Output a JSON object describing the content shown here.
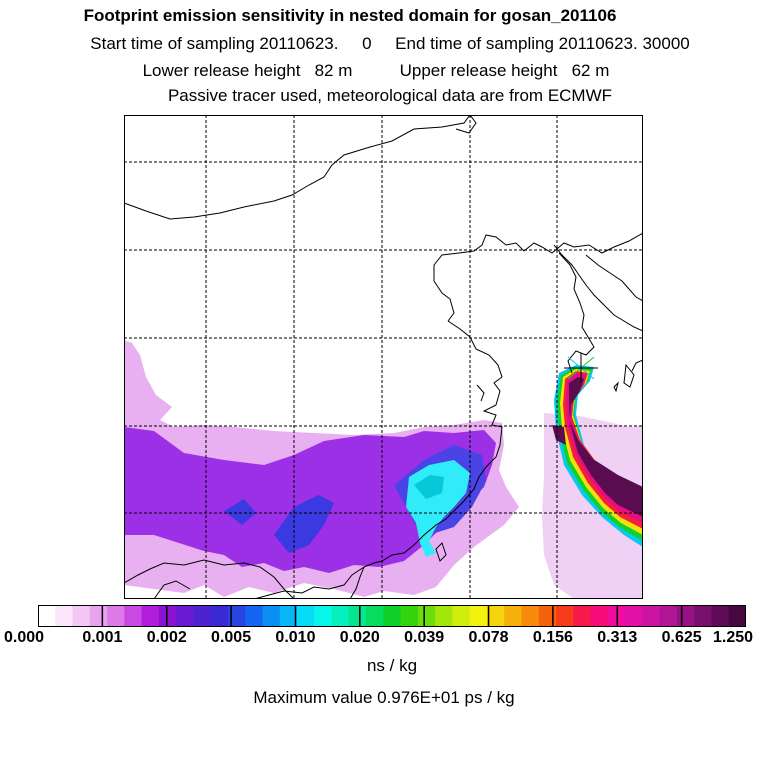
{
  "title": "Footprint emission sensitivity in nested domain for gosan_201106",
  "subtitle_sampling": "Start time of sampling 20110623.     0     End time of sampling 20110623. 30000",
  "subtitle_release": "Lower release height   82 m          Upper release height   62 m",
  "subtitle_tracer": "Passive tracer used, meteorological data are from ECMWF",
  "colorbar": {
    "tick_labels": [
      "0.000",
      "0.001",
      "0.002",
      "0.005",
      "0.010",
      "0.020",
      "0.039",
      "0.078",
      "0.156",
      "0.313",
      "0.625",
      "1.250"
    ],
    "colors": [
      "#ffffff",
      "#fbe6fb",
      "#f3c6f6",
      "#e9a2ee",
      "#dd7ae8",
      "#c94ae2",
      "#b01ddb",
      "#8a12d2",
      "#6a1ad0",
      "#4e22cf",
      "#3a2ad6",
      "#2a44e0",
      "#1466f2",
      "#0c8ff4",
      "#08b6f6",
      "#06dcf6",
      "#06f6ea",
      "#06f0bd",
      "#06e690",
      "#07dc5f",
      "#10d02c",
      "#33d40c",
      "#6ade0c",
      "#a2e60c",
      "#cfee0c",
      "#f2f20c",
      "#f6d40c",
      "#f6b00c",
      "#f68a0c",
      "#f6620c",
      "#f63a1a",
      "#f61a4a",
      "#f60c78",
      "#f00c9c",
      "#e010a8",
      "#cc14a4",
      "#b21496",
      "#961284",
      "#7a106e",
      "#5e0c56",
      "#46083e"
    ],
    "unit": "ns / kg"
  },
  "max_value_text": "Maximum value  0.976E+01 ps / kg",
  "map_colors": {
    "magenta_halo": "#e8b0f0",
    "violet": "#9b30e6",
    "blue": "#3a3ae0",
    "cyan": "#30ecf8",
    "plume_core": "#5a0c50",
    "plume_edge_red": "#f4213c",
    "plume_edge_yellow": "#f4e00c",
    "plume_edge_green": "#10d02c",
    "plume_edge_cyan": "#08c8f0"
  },
  "icons": [
    "receptor-star-icon"
  ]
}
